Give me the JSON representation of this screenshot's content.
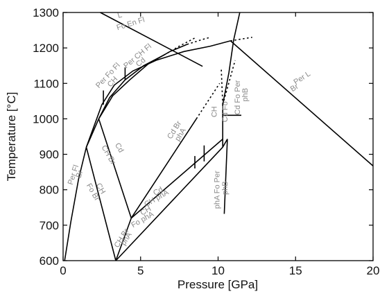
{
  "chart_data": {
    "type": "line",
    "title": "",
    "xlabel": "Pressure [GPa]",
    "ylabel": "Temperature [°C]",
    "xlim": [
      0,
      20
    ],
    "ylim": [
      600,
      1300
    ],
    "xticks": [
      "0",
      "5",
      "10",
      "15",
      "20"
    ],
    "yticks": [
      "600",
      "700",
      "800",
      "900",
      "1000",
      "1100",
      "1200",
      "1300"
    ],
    "grid": false,
    "legend": "none",
    "line_color": "#000000",
    "label_color": "#8a8a8a",
    "series": [
      {
        "style": "solid",
        "points": [
          [
            0.1,
            600
          ],
          [
            0.5,
            710
          ],
          [
            1.0,
            830
          ],
          [
            1.5,
            920
          ],
          [
            2.0,
            980
          ],
          [
            2.5,
            1040
          ],
          [
            3.3,
            1095
          ],
          [
            4.5,
            1135
          ],
          [
            6.0,
            1165
          ],
          [
            7.8,
            1190
          ],
          [
            9.5,
            1205
          ],
          [
            10.8,
            1220
          ]
        ]
      },
      {
        "style": "solid",
        "points": [
          [
            2.3,
            1000
          ],
          [
            3.0,
            1060
          ],
          [
            4.0,
            1110
          ],
          [
            5.2,
            1150
          ],
          [
            6.5,
            1180
          ]
        ]
      },
      {
        "style": "solid",
        "points": [
          [
            2.3,
            1000
          ],
          [
            3.2,
            1065
          ],
          [
            4.3,
            1110
          ],
          [
            5.5,
            1155
          ],
          [
            6.9,
            1190
          ],
          [
            8.0,
            1210
          ]
        ]
      },
      {
        "style": "dotted",
        "points": [
          [
            6.5,
            1180
          ],
          [
            7.5,
            1205
          ],
          [
            8.5,
            1228
          ]
        ]
      },
      {
        "style": "dotted",
        "points": [
          [
            8.0,
            1210
          ],
          [
            9.0,
            1224
          ],
          [
            9.5,
            1230
          ]
        ]
      },
      {
        "style": "solid",
        "points": [
          [
            2.4,
            1300
          ],
          [
            9.0,
            1148
          ]
        ]
      },
      {
        "style": "solid",
        "points": [
          [
            1.5,
            920
          ],
          [
            2.3,
            1000
          ]
        ]
      },
      {
        "style": "solid",
        "points": [
          [
            1.5,
            920
          ],
          [
            3.4,
            600
          ]
        ]
      },
      {
        "style": "solid",
        "points": [
          [
            2.3,
            1000
          ],
          [
            4.4,
            720
          ]
        ]
      },
      {
        "style": "solid",
        "points": [
          [
            3.4,
            600
          ],
          [
            4.4,
            720
          ]
        ]
      },
      {
        "style": "solid",
        "points": [
          [
            4.4,
            720
          ],
          [
            10.3,
            943
          ]
        ]
      },
      {
        "style": "solid",
        "points": [
          [
            3.4,
            600
          ],
          [
            10.3,
            920
          ]
        ]
      },
      {
        "style": "solid",
        "points": [
          [
            4.4,
            720
          ],
          [
            8.6,
            1000
          ]
        ]
      },
      {
        "style": "dotted",
        "points": [
          [
            8.6,
            1000
          ],
          [
            10.1,
            1100
          ]
        ]
      },
      {
        "style": "solid",
        "points": [
          [
            10.3,
            920
          ],
          [
            10.3,
            1040
          ],
          [
            10.7,
            1130
          ],
          [
            11.0,
            1222
          ],
          [
            11.4,
            1300
          ]
        ]
      },
      {
        "style": "dotted",
        "points": [
          [
            10.3,
            1040
          ],
          [
            10.2,
            1145
          ]
        ]
      },
      {
        "style": "dotted",
        "points": [
          [
            10.3,
            1040
          ],
          [
            11.1,
            1165
          ]
        ]
      },
      {
        "style": "solid",
        "points": [
          [
            10.3,
            1010
          ],
          [
            11.5,
            1010
          ]
        ]
      },
      {
        "style": "solid",
        "points": [
          [
            10.3,
            920
          ],
          [
            10.6,
            943
          ],
          [
            10.4,
            732
          ]
        ]
      },
      {
        "style": "solid",
        "points": [
          [
            10.8,
            1220
          ],
          [
            20.0,
            867
          ]
        ]
      },
      {
        "style": "dotted",
        "points": [
          [
            10.8,
            1220
          ],
          [
            12.2,
            1230
          ]
        ]
      },
      {
        "style": "solid",
        "points": [
          [
            2.6,
            1040
          ],
          [
            2.6,
            1080
          ]
        ]
      },
      {
        "style": "solid",
        "points": [
          [
            4.0,
            1110
          ],
          [
            4.0,
            1145
          ]
        ]
      },
      {
        "style": "solid",
        "points": [
          [
            8.5,
            860
          ],
          [
            8.5,
            895
          ]
        ]
      },
      {
        "style": "solid",
        "points": [
          [
            9.1,
            880
          ],
          [
            9.1,
            925
          ]
        ]
      }
    ],
    "annotations": [
      {
        "text": "L",
        "x": 3.7,
        "y": 1286,
        "rotate": -17
      },
      {
        "text": "Fo En Fl",
        "x": 4.4,
        "y": 1262,
        "rotate": -17
      },
      {
        "text": "Per Fo Fl",
        "x": 3.0,
        "y": 1118,
        "rotate": -47
      },
      {
        "text": "CH",
        "x": 3.3,
        "y": 1100,
        "rotate": -47
      },
      {
        "text": "Per CH Fl",
        "x": 4.9,
        "y": 1172,
        "rotate": -40
      },
      {
        "text": "Cd",
        "x": 5.1,
        "y": 1155,
        "rotate": -40
      },
      {
        "text": "Per Fl",
        "x": 0.8,
        "y": 840,
        "rotate": -72
      },
      {
        "text": "Br",
        "x": 1.2,
        "y": 842,
        "rotate": -72
      },
      {
        "text": "CH",
        "x": 2.3,
        "y": 800,
        "rotate": 60
      },
      {
        "text": "Fo Br",
        "x": 1.8,
        "y": 790,
        "rotate": 60
      },
      {
        "text": "Cd",
        "x": 3.5,
        "y": 915,
        "rotate": 60
      },
      {
        "text": "CH Br",
        "x": 2.8,
        "y": 895,
        "rotate": 60
      },
      {
        "text": "Cd Br",
        "x": 7.3,
        "y": 965,
        "rotate": -58
      },
      {
        "text": "phA",
        "x": 7.7,
        "y": 952,
        "rotate": -58
      },
      {
        "text": "CH Br",
        "x": 3.9,
        "y": 660,
        "rotate": -58
      },
      {
        "text": "phA",
        "x": 4.2,
        "y": 658,
        "rotate": -58
      },
      {
        "text": "Cd",
        "x": 6.2,
        "y": 790,
        "rotate": -30
      },
      {
        "text": "CH phA",
        "x": 6.1,
        "y": 770,
        "rotate": -30
      },
      {
        "text": "CH",
        "x": 5.4,
        "y": 735,
        "rotate": -30
      },
      {
        "text": "Fo phA",
        "x": 5.2,
        "y": 710,
        "rotate": -30
      },
      {
        "text": "CH",
        "x": 9.9,
        "y": 1020,
        "rotate": -90
      },
      {
        "text": "Cd Fo",
        "x": 10.6,
        "y": 1020,
        "rotate": -90
      },
      {
        "text": "Cd Fo Per",
        "x": 11.4,
        "y": 1060,
        "rotate": -90
      },
      {
        "text": "phB",
        "x": 11.9,
        "y": 1068,
        "rotate": -90
      },
      {
        "text": "phA Fo Per",
        "x": 10.1,
        "y": 800,
        "rotate": -90
      },
      {
        "text": "phB",
        "x": 10.6,
        "y": 805,
        "rotate": -90
      },
      {
        "text": "Per L",
        "x": 15.5,
        "y": 1110,
        "rotate": -33
      },
      {
        "text": "Br",
        "x": 15.0,
        "y": 1082,
        "rotate": -33
      }
    ]
  }
}
